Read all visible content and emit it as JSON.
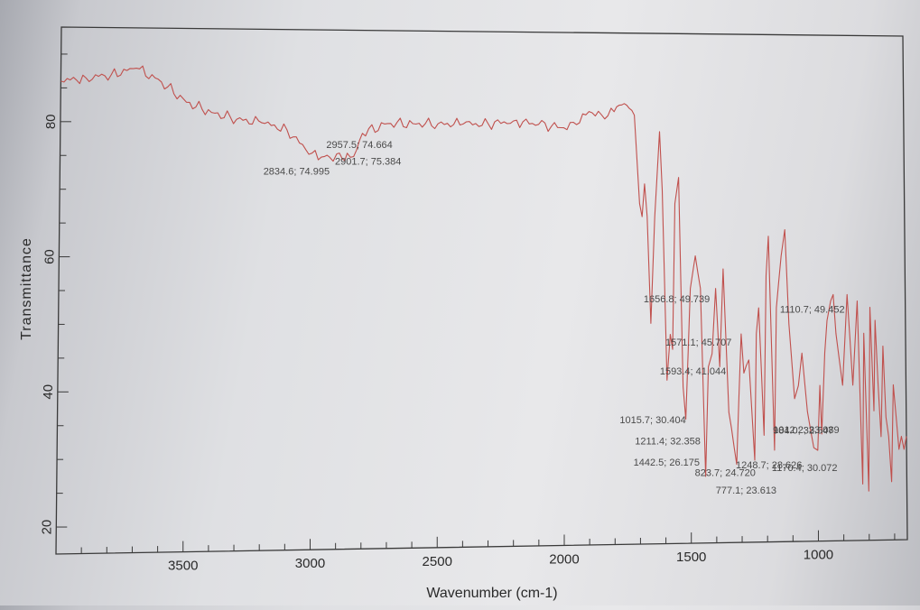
{
  "chart_data": {
    "type": "line",
    "title": "",
    "xlabel": "Wavenumber (cm-1)",
    "ylabel": "Transmittance",
    "xlim": [
      4000,
      650
    ],
    "ylim": [
      16,
      94
    ],
    "x_reversed": true,
    "x_ticks": [
      3500,
      3000,
      2500,
      2000,
      1500,
      1000
    ],
    "y_ticks": [
      20,
      40,
      60,
      80
    ],
    "grid": false,
    "legend": "none",
    "line_color": "#c0504d",
    "series": [
      {
        "x": [
          4000,
          3900,
          3800,
          3700,
          3600,
          3500,
          3400,
          3300,
          3200,
          3100,
          3050,
          3000,
          2950,
          2930,
          2901.7,
          2880,
          2860,
          2834.6,
          2800,
          2700,
          2600,
          2500,
          2400,
          2300,
          2200,
          2100,
          2000,
          1950,
          1900,
          1850,
          1800,
          1780,
          1750,
          1720,
          1700,
          1690,
          1680,
          1670,
          1656.8,
          1640,
          1620,
          1610,
          1593.4,
          1580,
          1571.1,
          1560,
          1545,
          1530,
          1520,
          1500,
          1480,
          1460,
          1442.5,
          1430,
          1415,
          1400,
          1385,
          1370,
          1350,
          1320,
          1300,
          1290,
          1270,
          1248.7,
          1240,
          1230,
          1211.4,
          1200,
          1190,
          1170.4,
          1160,
          1150,
          1140,
          1125,
          1110.7,
          1090,
          1075,
          1060,
          1040,
          1015.7,
          1000,
          990,
          984.0,
          970,
          960,
          945,
          935,
          925,
          900,
          880,
          860,
          840,
          823.7,
          815,
          800,
          790,
          777.1,
          770,
          760,
          750,
          740,
          730,
          720,
          710,
          700,
          690,
          680,
          670,
          660,
          650
        ],
        "y": [
          86,
          86.5,
          87,
          88,
          86,
          83,
          81.5,
          80.5,
          80,
          79,
          77,
          75.5,
          75,
          74.9,
          75.4,
          74.7,
          75.5,
          75.0,
          78.5,
          80,
          80,
          80,
          80,
          80,
          80.5,
          80,
          79.5,
          80,
          82,
          81.5,
          82,
          83,
          83,
          81.5,
          68,
          66,
          71,
          66,
          49.7,
          66,
          79,
          70,
          41.0,
          48,
          45.7,
          68,
          72,
          40,
          35,
          55,
          60,
          55,
          26.2,
          43,
          45,
          55,
          43,
          58,
          36,
          28,
          48,
          42,
          44,
          28.6,
          48,
          52,
          32.4,
          57,
          63,
          30.1,
          52,
          56,
          60,
          64,
          49.5,
          38,
          40,
          45,
          36,
          30.4,
          30,
          40,
          32.5,
          45,
          50,
          53,
          54,
          48,
          40,
          54,
          40,
          53,
          24.7,
          48,
          23.6,
          52,
          36,
          50,
          40,
          32,
          46,
          35,
          32,
          25,
          40,
          35,
          30,
          32,
          30,
          32
        ]
      }
    ],
    "annotations": [
      {
        "label": "2834.6; 74.995",
        "x": 2834.6,
        "y": 74.995
      },
      {
        "label": "2901.7; 75.384",
        "x": 2901.7,
        "y": 75.384
      },
      {
        "label": "2957.5; 74.664",
        "x": 2957.5,
        "y": 74.664
      },
      {
        "label": "1656.8; 49.739",
        "x": 1656.8,
        "y": 49.739
      },
      {
        "label": "1571.1; 45.707",
        "x": 1571.1,
        "y": 45.707
      },
      {
        "label": "1593.4; 41.044",
        "x": 1593.4,
        "y": 41.044
      },
      {
        "label": "1442.5; 26.175",
        "x": 1442.5,
        "y": 26.175
      },
      {
        "label": "1015.7; 30.404",
        "x": 1015.7,
        "y": 30.404
      },
      {
        "label": "1211.4; 32.358",
        "x": 1211.4,
        "y": 32.358
      },
      {
        "label": "1248.7; 28.626",
        "x": 1248.7,
        "y": 28.626
      },
      {
        "label": "1170.4; 30.072",
        "x": 1170.4,
        "y": 30.072
      },
      {
        "label": "1110.7; 49.452",
        "x": 1110.7,
        "y": 49.452
      },
      {
        "label": "1012.2; 33.089",
        "x": 1012.2,
        "y": 33.089
      },
      {
        "label": "984.0; 32.547",
        "x": 984.0,
        "y": 32.547
      },
      {
        "label": "823.7; 24.720",
        "x": 823.7,
        "y": 24.72
      },
      {
        "label": "777.1; 23.613",
        "x": 777.1,
        "y": 23.613
      }
    ]
  }
}
